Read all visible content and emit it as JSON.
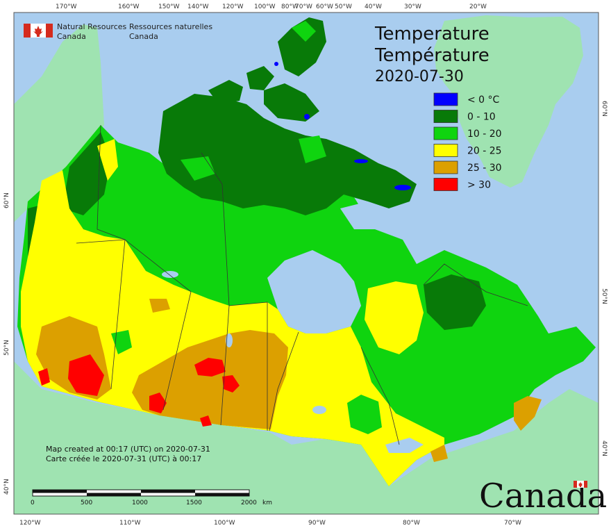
{
  "agency": {
    "name_en_1": "Natural Resources",
    "name_en_2": "Canada",
    "name_fr_1": "Ressources naturelles",
    "name_fr_2": "Canada"
  },
  "title": {
    "line1": "Temperature",
    "line2": "Température",
    "date": "2020-07-30"
  },
  "legend": [
    {
      "label": "< 0 °C",
      "color": "#0000ff"
    },
    {
      "label": "0 - 10",
      "color": "#087a08"
    },
    {
      "label": "10 - 20",
      "color": "#0fd40f"
    },
    {
      "label": "20 - 25",
      "color": "#ffff00"
    },
    {
      "label": "25 - 30",
      "color": "#dca000"
    },
    {
      "label": "> 30",
      "color": "#ff0000"
    }
  ],
  "credit": {
    "en": "Map created at 00:17 (UTC) on 2020-07-31",
    "fr": "Carte créée le 2020-07-31 (UTC) à 00:17"
  },
  "scale_bar": {
    "labels": [
      "0",
      "500",
      "1000",
      "1500",
      "2000"
    ],
    "unit": "km"
  },
  "top_ticks": [
    "170°W",
    "160°W",
    "150°W",
    "140°W",
    "120°W",
    "100°W",
    "80°W",
    "70°W",
    "60°W",
    "50°W",
    "40°W",
    "30°W",
    "20°W"
  ],
  "bottom_ticks": [
    "120°W",
    "110°W",
    "100°W",
    "90°W",
    "80°W",
    "70°W"
  ],
  "left_ticks": [
    "60°N",
    "50°N",
    "40°N"
  ],
  "right_ticks": [
    "60°N",
    "50°N",
    "40°N"
  ],
  "wordmark": "Canada",
  "colors": {
    "ocean": "#a9cdef",
    "land_outside": "#9fe3b1",
    "border": "#333333"
  }
}
